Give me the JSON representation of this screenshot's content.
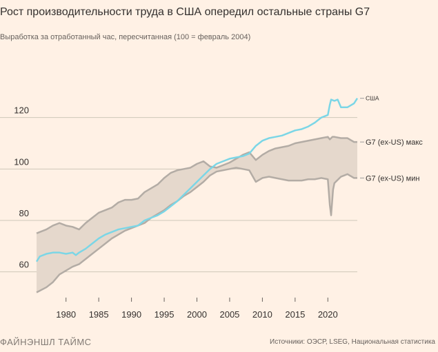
{
  "header": {
    "title": "Рост производительности труда в США опередил остальные страны G7",
    "subtitle": "Выработка за отработанный час, пересчитанная (100 = февраль 2004)"
  },
  "footer": {
    "brand": "ФАЙНЭНШЛ ТАЙМС",
    "source": "Источники: ОЭСР, LSEG, Национальная статистика"
  },
  "colors": {
    "background": "#fff1e5",
    "band_fill": "#e5d8cc",
    "band_line": "#b3aca5",
    "usa_line": "#7bd6e6",
    "grid": "#cec6b9",
    "axis_text": "#33302e",
    "label_text": "#33302e"
  },
  "chart_data": {
    "type": "line",
    "title": "Рост производительности труда в США опередил остальные страны G7",
    "subtitle": "Выработка за отработанный час, пересчитанная (100 = февраль 2004)",
    "xlabel": "",
    "ylabel": "",
    "xlim": [
      1975.5,
      2024.5
    ],
    "ylim": [
      50,
      140
    ],
    "x_ticks": [
      1980,
      1985,
      1990,
      1995,
      2000,
      2005,
      2010,
      2015,
      2020
    ],
    "x_tick_labels": [
      "1980",
      "1985",
      "1990",
      "1995",
      "2000",
      "2005",
      "2010",
      "2015",
      "2020"
    ],
    "y_ticks": [
      60,
      80,
      100,
      120
    ],
    "y_tick_labels": [
      "60",
      "80",
      "100",
      "120"
    ],
    "grid": true,
    "series": [
      {
        "name": "США",
        "x": [
          1975.5,
          1976,
          1977,
          1978,
          1979,
          1980,
          1981,
          1981.5,
          1982,
          1983,
          1984,
          1985,
          1986,
          1987,
          1988,
          1989,
          1990,
          1991,
          1992,
          1993,
          1994,
          1995,
          1996,
          1997,
          1998,
          1999,
          2000,
          2001,
          2002,
          2003,
          2004,
          2005,
          2006,
          2007,
          2008,
          2009,
          2010,
          2011,
          2012,
          2013,
          2014,
          2015,
          2016,
          2017,
          2018,
          2019,
          2020,
          2020.3,
          2020.5,
          2021,
          2021.5,
          2022,
          2023,
          2024,
          2024.5
        ],
        "values": [
          64,
          66,
          67,
          67.5,
          67.5,
          67,
          67.5,
          66.5,
          67.5,
          69,
          71,
          73,
          74.5,
          75.5,
          76.5,
          77,
          77.5,
          78,
          80,
          81,
          82,
          83.5,
          85.5,
          87.5,
          90,
          92.5,
          95,
          97.5,
          100,
          102,
          103,
          104,
          104.5,
          105,
          106,
          109,
          111,
          112,
          112.5,
          113,
          114,
          115,
          115.5,
          116.5,
          118,
          120,
          121,
          125,
          127,
          126.5,
          127,
          124,
          124,
          125.5,
          127.5
        ]
      },
      {
        "name": "G7 (ex-US) макс",
        "x": [
          1975.5,
          1977,
          1978,
          1979,
          1980,
          1981,
          1982,
          1983,
          1984,
          1985,
          1986,
          1987,
          1988,
          1989,
          1990,
          1991,
          1992,
          1993,
          1994,
          1995,
          1996,
          1997,
          1998,
          1999,
          2000,
          2001,
          2002,
          2003,
          2004,
          2005,
          2006,
          2007,
          2008,
          2009,
          2010,
          2011,
          2012,
          2013,
          2014,
          2015,
          2016,
          2017,
          2018,
          2019,
          2020,
          2020.3,
          2020.7,
          2021,
          2022,
          2023,
          2024,
          2024.5
        ],
        "values": [
          75,
          76.5,
          78,
          79,
          78,
          77.5,
          76.5,
          79,
          81,
          83,
          84,
          85,
          87,
          88,
          88,
          88.5,
          91,
          92.5,
          94,
          96.5,
          98.5,
          99.5,
          100,
          100.5,
          102,
          103,
          101,
          100.5,
          101.5,
          102.5,
          104,
          105.5,
          106.5,
          103.5,
          105.5,
          107,
          108,
          108.5,
          109,
          110,
          110.5,
          111,
          111.5,
          112,
          112.5,
          111.5,
          112.5,
          112.5,
          112,
          112,
          110.5,
          110.5
        ]
      },
      {
        "name": "G7 (ex-US) мин",
        "x": [
          1975.5,
          1977,
          1978,
          1979,
          1980,
          1981,
          1982,
          1983,
          1984,
          1985,
          1986,
          1987,
          1988,
          1989,
          1990,
          1991,
          1992,
          1993,
          1994,
          1995,
          1996,
          1997,
          1998,
          1999,
          2000,
          2001,
          2002,
          2003,
          2004,
          2005,
          2006,
          2007,
          2008,
          2009,
          2010,
          2011,
          2012,
          2013,
          2014,
          2015,
          2016,
          2017,
          2018,
          2019,
          2020,
          2020.3,
          2020.5,
          2020.8,
          2021,
          2022,
          2023,
          2024,
          2024.5
        ],
        "values": [
          52,
          54,
          56,
          59,
          60.5,
          62,
          63,
          65,
          67,
          69,
          71,
          73,
          74.5,
          76,
          77,
          78,
          79,
          81,
          82.5,
          84,
          86,
          87.5,
          89.5,
          91,
          93,
          95,
          97.5,
          99,
          99.5,
          100,
          100.5,
          100,
          99.5,
          95,
          96.5,
          97,
          96.5,
          96,
          95.5,
          95.5,
          95.5,
          96,
          96,
          96.5,
          96,
          86,
          82,
          92,
          94.5,
          97,
          98,
          96.5,
          96.5
        ]
      }
    ],
    "series_labels": [
      "США",
      "G7 (ex-US) макс",
      "G7 (ex-US) мин"
    ]
  }
}
